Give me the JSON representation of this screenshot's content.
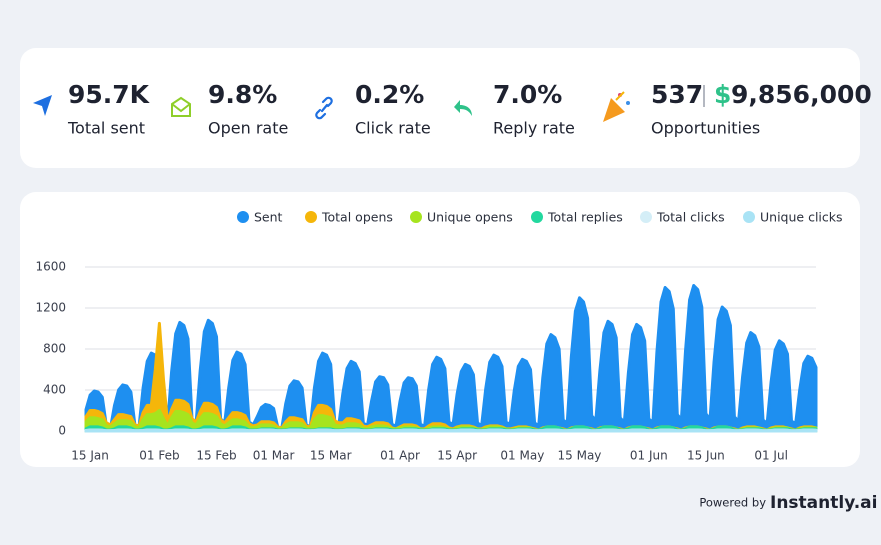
{
  "stats": [
    {
      "value": "95.7K",
      "label": "Total sent"
    },
    {
      "value": "9.8%",
      "label": "Open rate"
    },
    {
      "value": "0.2%",
      "label": "Click rate"
    },
    {
      "value": "7.0%",
      "label": "Reply rate"
    },
    {
      "value": "537",
      "currency": "$",
      "amount": "9,856,000",
      "label": "Opportunities"
    }
  ],
  "footer": {
    "prefix": "Powered by",
    "brand": "Instantly.ai"
  },
  "chart_data": {
    "type": "area",
    "categories": [
      null,
      "15 Jan",
      null,
      null,
      null,
      null,
      null,
      null,
      null,
      null,
      null,
      null,
      null,
      null,
      null,
      null,
      null,
      null,
      "01 Feb",
      null,
      null,
      null,
      null,
      null,
      null,
      null,
      null,
      null,
      null,
      null,
      null,
      null,
      "15 Feb",
      null,
      null,
      null,
      null,
      null,
      null,
      null,
      null,
      null,
      null,
      null,
      null,
      null,
      "01 Mar",
      null,
      null,
      null,
      null,
      null,
      null,
      null,
      null,
      null,
      null,
      null,
      null,
      null,
      "15 Mar",
      null,
      null,
      null,
      null,
      null,
      null,
      null,
      null,
      null,
      null,
      null,
      null,
      null,
      null,
      null,
      null,
      "01 Apr",
      null,
      null,
      null,
      null,
      null,
      null,
      null,
      null,
      null,
      null,
      null,
      null,
      null,
      "15 Apr",
      null,
      null,
      null,
      null,
      null,
      null,
      null,
      null,
      null,
      null,
      null,
      null,
      null,
      null,
      null,
      "01 May",
      null,
      null,
      null,
      null,
      null,
      null,
      null,
      null,
      null,
      null,
      null,
      null,
      null,
      "15 May",
      null,
      null,
      null,
      null,
      null,
      null,
      null,
      null,
      null,
      null,
      null,
      null,
      null,
      null,
      null,
      null,
      "01 Jun",
      null,
      null,
      null,
      null,
      null,
      null,
      null,
      null,
      null,
      null,
      null,
      null,
      null,
      "15 Jun",
      null,
      null,
      null,
      null,
      null,
      null,
      null,
      null,
      null,
      null,
      null,
      null,
      null,
      null,
      null,
      "01 Jul",
      null,
      null,
      null,
      null,
      null,
      null,
      null,
      null,
      null,
      null,
      null
    ],
    "series": [
      {
        "name": "Sent",
        "color": "#1e8ff0",
        "values": [
          210,
          350,
          390,
          380,
          330,
          50,
          30,
          250,
          400,
          450,
          440,
          380,
          60,
          40,
          420,
          680,
          760,
          740,
          650,
          90,
          60,
          580,
          950,
          1060,
          1030,
          900,
          120,
          80,
          590,
          970,
          1080,
          1050,
          920,
          120,
          80,
          420,
          690,
          770,
          750,
          650,
          90,
          60,
          140,
          230,
          260,
          250,
          220,
          40,
          30,
          270,
          440,
          490,
          480,
          420,
          60,
          40,
          420,
          680,
          760,
          740,
          650,
          90,
          60,
          370,
          610,
          680,
          660,
          580,
          80,
          50,
          290,
          480,
          530,
          520,
          450,
          70,
          40,
          290,
          470,
          520,
          510,
          440,
          70,
          40,
          400,
          650,
          720,
          700,
          610,
          90,
          60,
          360,
          580,
          650,
          630,
          550,
          80,
          50,
          410,
          670,
          740,
          720,
          630,
          90,
          60,
          390,
          630,
          700,
          680,
          600,
          80,
          50,
          520,
          850,
          940,
          910,
          800,
          110,
          70,
          720,
          1170,
          1300,
          1260,
          1100,
          150,
          100,
          590,
          960,
          1070,
          1040,
          910,
          130,
          80,
          570,
          940,
          1040,
          1010,
          880,
          120,
          80,
          770,
          1260,
          1400,
          1360,
          1190,
          160,
          110,
          780,
          1280,
          1420,
          1380,
          1210,
          170,
          110,
          670,
          1090,
          1210,
          1170,
          1030,
          140,
          90,
          530,
          860,
          960,
          930,
          820,
          110,
          70,
          480,
          790,
          880,
          850,
          750,
          100,
          70,
          400,
          660,
          730,
          710,
          620
        ]
      },
      {
        "name": "Total opens",
        "color": "#f5b60a",
        "values": [
          140,
          200,
          200,
          190,
          170,
          80,
          60,
          110,
          160,
          160,
          150,
          140,
          60,
          50,
          180,
          250,
          250,
          600,
          1050,
          500,
          80,
          210,
          300,
          300,
          290,
          260,
          120,
          90,
          190,
          270,
          270,
          260,
          230,
          110,
          80,
          130,
          180,
          180,
          170,
          150,
          70,
          50,
          60,
          90,
          90,
          90,
          80,
          40,
          30,
          90,
          130,
          130,
          120,
          110,
          50,
          40,
          180,
          250,
          250,
          240,
          210,
          100,
          80,
          80,
          120,
          120,
          110,
          100,
          50,
          40,
          60,
          80,
          80,
          80,
          70,
          30,
          20,
          40,
          60,
          60,
          60,
          50,
          20,
          20,
          50,
          70,
          70,
          70,
          60,
          30,
          20,
          40,
          50,
          50,
          50,
          40,
          20,
          20,
          40,
          50,
          50,
          50,
          40,
          20,
          20,
          30,
          40,
          40,
          40,
          30,
          20,
          10,
          30,
          40,
          40,
          40,
          30,
          20,
          10,
          30,
          40,
          40,
          40,
          30,
          20,
          10,
          30,
          40,
          40,
          40,
          30,
          20,
          10,
          30,
          40,
          40,
          40,
          30,
          20,
          10,
          30,
          40,
          40,
          40,
          30,
          20,
          10,
          30,
          40,
          40,
          40,
          30,
          20,
          10,
          30,
          40,
          40,
          40,
          30,
          20,
          10,
          30,
          40,
          40,
          40,
          30,
          20,
          10,
          30,
          40,
          40,
          40,
          30,
          20,
          10,
          30,
          40,
          40,
          40,
          30
        ]
      },
      {
        "name": "Unique opens",
        "color": "#a6e41e",
        "values": [
          90,
          130,
          130,
          120,
          110,
          50,
          40,
          70,
          100,
          100,
          100,
          90,
          40,
          30,
          110,
          160,
          160,
          170,
          200,
          120,
          50,
          130,
          190,
          190,
          180,
          160,
          80,
          60,
          120,
          170,
          170,
          160,
          140,
          70,
          50,
          80,
          110,
          110,
          100,
          90,
          40,
          30,
          40,
          60,
          60,
          60,
          50,
          20,
          20,
          60,
          80,
          80,
          80,
          70,
          30,
          20,
          110,
          150,
          150,
          140,
          130,
          60,
          50,
          50,
          70,
          70,
          70,
          60,
          30,
          20,
          40,
          50,
          50,
          50,
          40,
          20,
          20,
          30,
          40,
          40,
          40,
          30,
          20,
          10,
          30,
          40,
          40,
          40,
          30,
          20,
          10,
          30,
          40,
          40,
          40,
          30,
          20,
          10,
          30,
          40,
          40,
          40,
          30,
          20,
          10,
          20,
          30,
          30,
          30,
          30,
          10,
          10,
          20,
          30,
          30,
          30,
          30,
          10,
          10,
          20,
          30,
          30,
          30,
          30,
          10,
          10,
          20,
          30,
          30,
          30,
          30,
          10,
          10,
          20,
          30,
          30,
          30,
          30,
          10,
          10,
          20,
          30,
          30,
          30,
          30,
          10,
          10,
          20,
          30,
          30,
          30,
          30,
          10,
          10,
          20,
          30,
          30,
          30,
          30,
          10,
          10,
          20,
          30,
          30,
          30,
          30,
          10,
          10,
          20,
          30,
          30,
          30,
          30,
          10,
          10,
          20,
          30,
          30,
          30,
          30
        ]
      },
      {
        "name": "Total replies",
        "color": "#22d89e",
        "values": [
          20,
          40,
          40,
          40,
          30,
          10,
          10,
          20,
          40,
          40,
          40,
          30,
          10,
          10,
          20,
          40,
          40,
          40,
          30,
          10,
          10,
          20,
          40,
          40,
          40,
          30,
          10,
          10,
          20,
          40,
          40,
          40,
          30,
          10,
          10,
          20,
          40,
          40,
          40,
          30,
          10,
          10,
          10,
          20,
          20,
          20,
          20,
          10,
          10,
          10,
          20,
          20,
          20,
          20,
          10,
          10,
          10,
          20,
          20,
          20,
          20,
          10,
          10,
          10,
          20,
          20,
          20,
          20,
          10,
          10,
          10,
          20,
          20,
          20,
          20,
          10,
          10,
          10,
          20,
          20,
          20,
          20,
          10,
          10,
          10,
          20,
          20,
          20,
          20,
          10,
          10,
          10,
          20,
          20,
          20,
          20,
          10,
          10,
          10,
          20,
          20,
          20,
          20,
          10,
          10,
          10,
          20,
          20,
          20,
          20,
          10,
          10,
          20,
          40,
          40,
          40,
          30,
          10,
          10,
          20,
          40,
          40,
          40,
          30,
          10,
          10,
          20,
          40,
          40,
          40,
          30,
          10,
          10,
          20,
          40,
          40,
          40,
          30,
          10,
          10,
          20,
          40,
          40,
          40,
          30,
          10,
          10,
          20,
          40,
          40,
          40,
          30,
          10,
          10,
          20,
          40,
          40,
          40,
          30,
          10,
          10,
          10,
          20,
          20,
          20,
          20,
          10,
          10,
          10,
          20,
          20,
          20,
          20,
          10,
          10,
          10,
          20,
          20,
          20,
          20
        ]
      },
      {
        "name": "Total clicks",
        "color": "#d4eef7",
        "values": [
          5,
          10,
          10,
          10,
          8,
          2,
          2,
          5,
          10,
          10,
          10,
          8,
          2,
          2,
          5,
          10,
          10,
          10,
          8,
          2,
          2,
          5,
          10,
          10,
          10,
          8,
          2,
          2,
          5,
          10,
          10,
          10,
          8,
          2,
          2,
          5,
          10,
          10,
          10,
          8,
          2,
          2,
          5,
          10,
          10,
          10,
          8,
          2,
          2,
          5,
          10,
          10,
          10,
          8,
          2,
          2,
          5,
          10,
          10,
          10,
          8,
          2,
          2,
          5,
          10,
          10,
          10,
          8,
          2,
          2,
          5,
          10,
          10,
          10,
          8,
          2,
          2,
          5,
          10,
          10,
          10,
          8,
          2,
          2,
          5,
          10,
          10,
          10,
          8,
          2,
          2,
          5,
          10,
          10,
          10,
          8,
          2,
          2,
          5,
          10,
          10,
          10,
          8,
          2,
          2,
          5,
          10,
          10,
          10,
          8,
          2,
          2,
          5,
          10,
          10,
          10,
          8,
          2,
          2,
          5,
          10,
          10,
          10,
          8,
          2,
          2,
          5,
          10,
          10,
          10,
          8,
          2,
          2,
          5,
          10,
          10,
          10,
          8,
          2,
          2,
          5,
          10,
          10,
          10,
          8,
          2,
          2,
          5,
          10,
          10,
          10,
          8,
          2,
          2,
          5,
          10,
          10,
          10,
          8,
          2,
          2,
          5,
          10,
          10,
          10,
          8,
          2,
          2,
          5,
          10,
          10,
          10,
          8,
          2,
          2,
          5,
          10,
          10,
          10,
          8
        ]
      },
      {
        "name": "Unique clicks",
        "color": "#a9e3f5",
        "values": [
          4,
          8,
          8,
          8,
          6,
          2,
          2,
          4,
          8,
          8,
          8,
          6,
          2,
          2,
          4,
          8,
          8,
          8,
          6,
          2,
          2,
          4,
          8,
          8,
          8,
          6,
          2,
          2,
          4,
          8,
          8,
          8,
          6,
          2,
          2,
          4,
          8,
          8,
          8,
          6,
          2,
          2,
          4,
          8,
          8,
          8,
          6,
          2,
          2,
          4,
          8,
          8,
          8,
          6,
          2,
          2,
          4,
          8,
          8,
          8,
          6,
          2,
          2,
          4,
          8,
          8,
          8,
          6,
          2,
          2,
          4,
          8,
          8,
          8,
          6,
          2,
          2,
          4,
          8,
          8,
          8,
          6,
          2,
          2,
          4,
          8,
          8,
          8,
          6,
          2,
          2,
          4,
          8,
          8,
          8,
          6,
          2,
          2,
          4,
          8,
          8,
          8,
          6,
          2,
          2,
          4,
          8,
          8,
          8,
          6,
          2,
          2,
          4,
          8,
          8,
          8,
          6,
          2,
          2,
          4,
          8,
          8,
          8,
          6,
          2,
          2,
          4,
          8,
          8,
          8,
          6,
          2,
          2,
          4,
          8,
          8,
          8,
          6,
          2,
          2,
          4,
          8,
          8,
          8,
          6,
          2,
          2,
          4,
          8,
          8,
          8,
          6,
          2,
          2,
          4,
          8,
          8,
          8,
          6,
          2,
          2,
          4,
          8,
          8,
          8,
          6,
          2,
          2,
          4,
          8,
          8,
          8,
          6,
          2,
          2,
          4,
          8,
          8,
          8,
          6
        ]
      }
    ],
    "ylim": [
      0,
      1600
    ],
    "yticks": [
      0,
      400,
      800,
      1200,
      1600
    ],
    "grid": true,
    "legend": "top"
  }
}
